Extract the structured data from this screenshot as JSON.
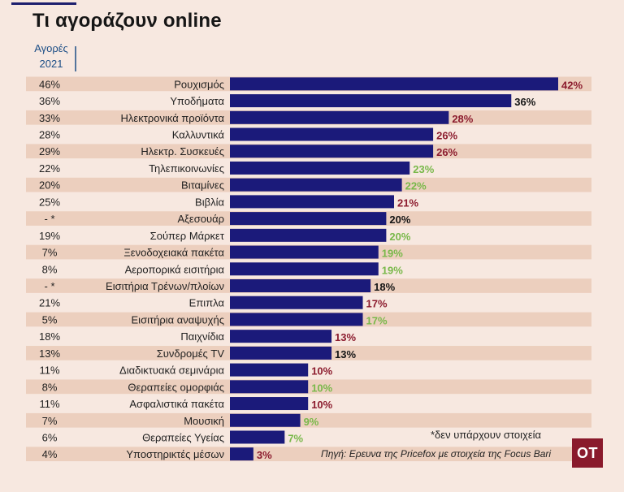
{
  "title": "Τι αγοράζουν online",
  "column_header": [
    "Αγορές",
    "2021"
  ],
  "note": "*δεν υπάρχουν στοιχεία",
  "source": "Πηγή: Ερευνα της Pricefox με στοιχεία της Focus Bari",
  "logo": "OT",
  "colors": {
    "bar": "#1b1a7a",
    "stripe": "#eccfbe",
    "background": "#f7e8e0",
    "label_down": "#8c1c2e",
    "label_same": "#151515",
    "label_up": "#79b84a",
    "header_text": "#1c4e86"
  },
  "chart_data": {
    "type": "bar",
    "orientation": "horizontal",
    "categories": [
      "Ρουχισμός",
      "Υποδήματα",
      "Ηλεκτρονικά προϊόντα",
      "Καλλυντικά",
      "Ηλεκτρ. Συσκευές",
      "Τηλεπικοινωνίες",
      "Βιταμίνες",
      "Βιβλία",
      "Αξεσουάρ",
      "Σούπερ Μάρκετ",
      "Ξενοδοχειακά πακέτα",
      "Αεροπορικά εισιτήρια",
      "Εισιτήρια Τρένων/πλοίων",
      "Επιπλα",
      "Εισιτήρια αναψυχής",
      "Παιχνίδια",
      "Συνδρομές TV",
      "Διαδικτυακά σεμινάρια",
      "Θεραπείες ομορφιάς",
      "Ασφαλιστικά πακέτα",
      "Μουσική",
      "Θεραπείες Υγείας",
      "Υποστηρικτές μέσων"
    ],
    "values": [
      42,
      36,
      28,
      26,
      26,
      23,
      22,
      21,
      20,
      20,
      19,
      19,
      18,
      17,
      17,
      13,
      13,
      10,
      10,
      10,
      9,
      7,
      3
    ],
    "value_labels": [
      "42%",
      "36%",
      "28%",
      "26%",
      "26%",
      "23%",
      "22%",
      "21%",
      "20%",
      "20%",
      "19%",
      "19%",
      "18%",
      "17%",
      "17%",
      "13%",
      "13%",
      "10%",
      "10%",
      "10%",
      "9%",
      "7%",
      "3%"
    ],
    "previous_labels": [
      "46%",
      "36%",
      "33%",
      "28%",
      "29%",
      "22%",
      "20%",
      "25%",
      "- *",
      "19%",
      "7%",
      "8%",
      "- *",
      "21%",
      "5%",
      "18%",
      "13%",
      "11%",
      "8%",
      "11%",
      "7%",
      "6%",
      "4%"
    ],
    "previous_values": [
      46,
      36,
      33,
      28,
      29,
      22,
      20,
      25,
      null,
      19,
      7,
      8,
      null,
      21,
      5,
      18,
      13,
      11,
      8,
      11,
      7,
      6,
      4
    ],
    "xlim": [
      0,
      42
    ],
    "grid": false,
    "legend": "none"
  }
}
